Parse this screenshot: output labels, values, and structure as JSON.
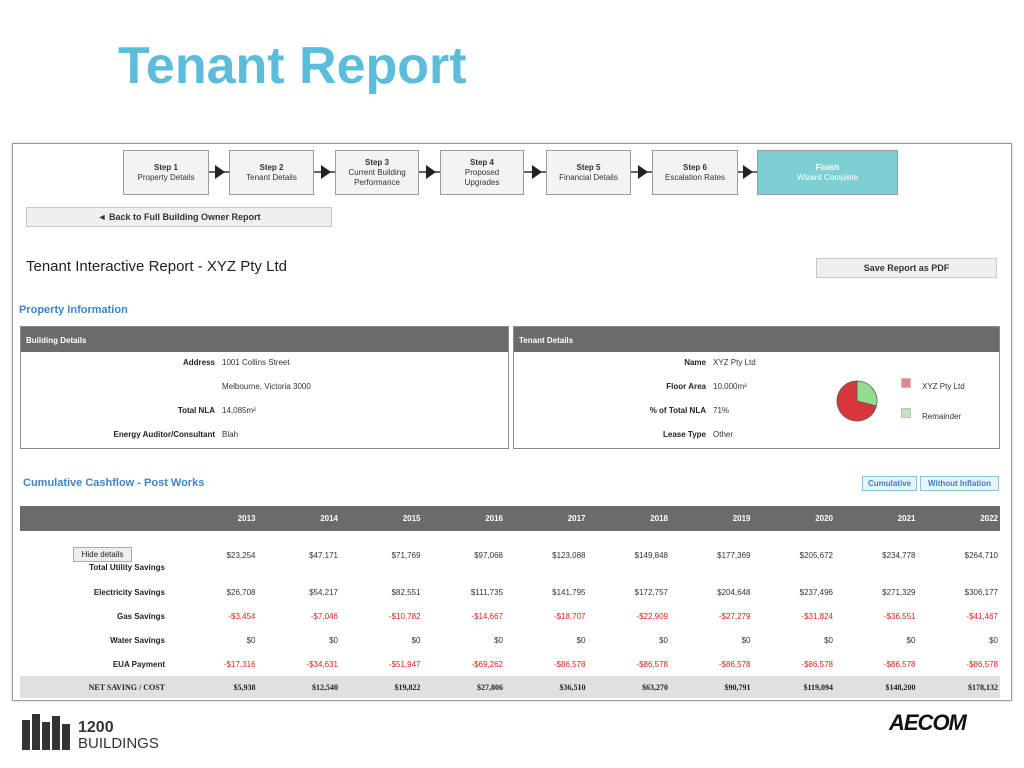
{
  "title": "Tenant Report",
  "wizard": {
    "steps": [
      {
        "step": "Step 1",
        "label": "Property Details"
      },
      {
        "step": "Step 2",
        "label": "Tenant Details"
      },
      {
        "step": "Step 3",
        "label": "Current Building Performance"
      },
      {
        "step": "Step 4",
        "label": "Proposed Upgrades"
      },
      {
        "step": "Step 5",
        "label": "Financial Details"
      },
      {
        "step": "Step 6",
        "label": "Escalation Rates"
      },
      {
        "step": "Finish",
        "label": "Wizard Complete"
      }
    ]
  },
  "back_button": "◄ Back to Full Building Owner Report",
  "report_title": "Tenant Interactive Report - XYZ Pty Ltd",
  "save_button": "Save Report as PDF",
  "property_section": "Property Information",
  "building_details": {
    "header": "Building Details",
    "rows": [
      {
        "label": "Address",
        "value": "1001 Collins Street"
      },
      {
        "value": "Melbourne, Victoria 3000"
      },
      {
        "label": "Total NLA",
        "value": "14,085m²"
      },
      {
        "label": "Energy Auditor/Consultant",
        "value": "Blah"
      }
    ]
  },
  "tenant_details": {
    "header": "Tenant Details",
    "rows": [
      {
        "label": "Name",
        "value": "XYZ Pty Ltd"
      },
      {
        "label": "Floor Area",
        "value": "10,000m²"
      },
      {
        "label": "% of Total NLA",
        "value": "71%"
      },
      {
        "label": "Lease Type",
        "value": "Other"
      }
    ]
  },
  "share_pie": {
    "series": [
      {
        "name": "XYZ Pty Ltd",
        "color": "#d9363b",
        "value": 71
      },
      {
        "name": "Remainder",
        "color": "#92dc8c",
        "value": 29
      }
    ]
  },
  "cashflow": {
    "title": "Cumulative Cashflow - Post Works",
    "buttons": [
      "Cumulative",
      "Without Inflation"
    ],
    "toggle": "Hide details",
    "years": [
      "2013",
      "2014",
      "2015",
      "2016",
      "2017",
      "2018",
      "2019",
      "2020",
      "2021",
      "2022"
    ],
    "rows": [
      {
        "label": "Total Utility Savings",
        "values": [
          "$23,254",
          "$47,171",
          "$71,769",
          "$97,068",
          "$123,088",
          "$149,848",
          "$177,369",
          "$205,672",
          "$234,778",
          "$264,710"
        ]
      },
      {
        "label": "Electricity Savings",
        "values": [
          "$26,708",
          "$54,217",
          "$82,551",
          "$111,735",
          "$141,795",
          "$172,757",
          "$204,648",
          "$237,496",
          "$271,329",
          "$306,177"
        ]
      },
      {
        "label": "Gas Savings",
        "values": [
          "-$3,454",
          "-$7,046",
          "-$10,782",
          "-$14,667",
          "-$18,707",
          "-$22,909",
          "-$27,279",
          "-$31,824",
          "-$36,551",
          "-$41,467"
        ]
      },
      {
        "label": "Water Savings",
        "values": [
          "$0",
          "$0",
          "$0",
          "$0",
          "$0",
          "$0",
          "$0",
          "$0",
          "$0",
          "$0"
        ]
      },
      {
        "label": "EUA Payment",
        "values": [
          "-$17,316",
          "-$34,631",
          "-$51,947",
          "-$69,262",
          "-$86,578",
          "-$86,578",
          "-$86,578",
          "-$86,578",
          "-$86,578",
          "-$86,578"
        ]
      }
    ],
    "total": {
      "label": "NET SAVING / COST",
      "values": [
        "$5,938",
        "$12,540",
        "$19,822",
        "$27,806",
        "$36,510",
        "$63,270",
        "$90,791",
        "$119,094",
        "$148,200",
        "$178,132"
      ]
    }
  },
  "footer": {
    "brand_number": "1200",
    "brand_name": "BUILDINGS",
    "partner": "AECOM"
  }
}
